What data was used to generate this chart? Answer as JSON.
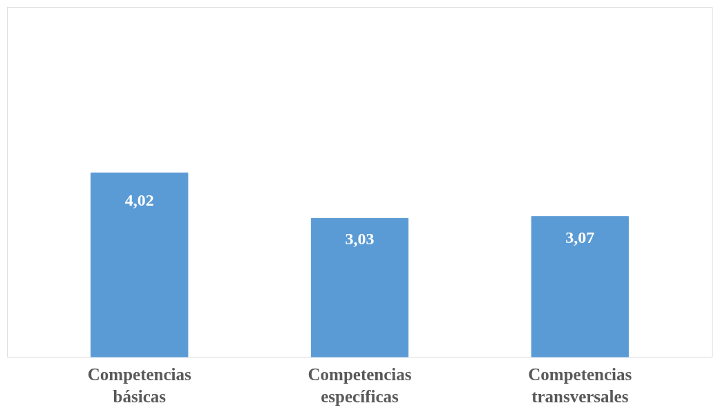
{
  "chart_data": {
    "type": "bar",
    "categories": [
      "Competencias básicas",
      "Competencias específicas",
      "Competencias transversales"
    ],
    "values": [
      4.02,
      3.03,
      3.07
    ],
    "color": "#5b9bd5",
    "value_labels": [
      "4,02",
      "3,03",
      "3,07"
    ],
    "grid": false
  }
}
